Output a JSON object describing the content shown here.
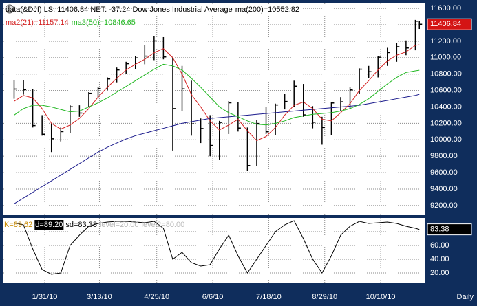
{
  "chart_data": [
    {
      "type": "ohlc",
      "title": "data(&DJI) LS: 11406.84  NET: -37.24  Dow Jones Industrial Average",
      "x": [
        "2010-01-08",
        "2010-01-15",
        "2010-01-22",
        "2010-01-29",
        "2010-02-05",
        "2010-02-12",
        "2010-02-19",
        "2010-02-26",
        "2010-03-05",
        "2010-03-12",
        "2010-03-19",
        "2010-03-26",
        "2010-04-02",
        "2010-04-09",
        "2010-04-16",
        "2010-04-23",
        "2010-04-30",
        "2010-05-07",
        "2010-05-14",
        "2010-05-21",
        "2010-05-28",
        "2010-06-04",
        "2010-06-11",
        "2010-06-18",
        "2010-06-25",
        "2010-07-02",
        "2010-07-09",
        "2010-07-16",
        "2010-07-23",
        "2010-07-30",
        "2010-08-06",
        "2010-08-13",
        "2010-08-20",
        "2010-08-27",
        "2010-09-03",
        "2010-09-10",
        "2010-09-17",
        "2010-09-24",
        "2010-10-01",
        "2010-10-08",
        "2010-10-15",
        "2010-10-22",
        "2010-10-29",
        "2010-11-05",
        "2010-11-08"
      ],
      "high": [
        10730,
        10730,
        10620,
        10300,
        10200,
        10150,
        10420,
        10420,
        10580,
        10640,
        10760,
        10880,
        10950,
        11020,
        11150,
        11260,
        11250,
        11010,
        10900,
        10720,
        10260,
        10300,
        10230,
        10470,
        10460,
        10150,
        10240,
        10400,
        10440,
        10560,
        10720,
        10680,
        10410,
        10280,
        10460,
        10520,
        10640,
        10870,
        10900,
        11020,
        11120,
        11180,
        11210,
        11460,
        11450
      ],
      "low": [
        10500,
        10550,
        10150,
        10050,
        9850,
        9980,
        10080,
        10280,
        10400,
        10510,
        10600,
        10700,
        10800,
        10860,
        10920,
        10970,
        10980,
        9870,
        10350,
        10050,
        9960,
        9800,
        9760,
        10070,
        10100,
        9620,
        9680,
        10070,
        10060,
        10370,
        10400,
        10280,
        10140,
        9940,
        10060,
        10350,
        10380,
        10560,
        10750,
        10760,
        10900,
        10950,
        11030,
        11090,
        11350
      ],
      "close": [
        10618,
        10610,
        10173,
        10067,
        10012,
        10099,
        10402,
        10325,
        10566,
        10625,
        10742,
        10851,
        10927,
        10997,
        11019,
        11204,
        11009,
        10380,
        10620,
        10193,
        10137,
        9931,
        10211,
        10450,
        10143,
        9686,
        10198,
        10097,
        10424,
        10466,
        10653,
        10303,
        10213,
        10150,
        10448,
        10462,
        10607,
        10860,
        10829,
        11006,
        11062,
        11133,
        11118,
        11444,
        11406.84
      ],
      "color": "#000000",
      "last_color": "#d41414",
      "series": [
        {
          "name": "ma(200)=10552.82",
          "color": "#1a1a8c",
          "values": [
            9220,
            9290,
            9360,
            9430,
            9500,
            9570,
            9640,
            9710,
            9780,
            9850,
            9910,
            9960,
            10010,
            10050,
            10080,
            10110,
            10140,
            10170,
            10200,
            10220,
            10240,
            10260,
            10270,
            10280,
            10290,
            10300,
            10310,
            10320,
            10330,
            10340,
            10350,
            10360,
            10370,
            10380,
            10390,
            10400,
            10410,
            10420,
            10440,
            10460,
            10480,
            10500,
            10520,
            10540,
            10552.82
          ]
        },
        {
          "name": "ma2(21)=11157.14",
          "color": "#d42020",
          "values": [
            10470,
            10540,
            10510,
            10380,
            10200,
            10130,
            10180,
            10260,
            10380,
            10520,
            10640,
            10750,
            10850,
            10920,
            10980,
            11060,
            11110,
            11000,
            10800,
            10550,
            10400,
            10230,
            10120,
            10180,
            10250,
            10110,
            9990,
            10040,
            10150,
            10300,
            10420,
            10460,
            10380,
            10250,
            10230,
            10330,
            10440,
            10600,
            10720,
            10850,
            10960,
            11030,
            11070,
            11150,
            11157.14
          ]
        },
        {
          "name": "ma3(50)=10846.65",
          "color": "#22b822",
          "values": [
            10300,
            10380,
            10420,
            10420,
            10400,
            10370,
            10340,
            10350,
            10400,
            10450,
            10510,
            10580,
            10650,
            10720,
            10790,
            10860,
            10920,
            10900,
            10850,
            10750,
            10640,
            10520,
            10400,
            10330,
            10280,
            10230,
            10190,
            10180,
            10200,
            10230,
            10270,
            10290,
            10310,
            10320,
            10330,
            10350,
            10380,
            10430,
            10500,
            10590,
            10680,
            10760,
            10820,
            10840,
            10846.65
          ]
        }
      ],
      "xlim": [
        "2009-12-31",
        "2010-11-12"
      ],
      "ylim": [
        9090,
        11660
      ],
      "yticks": [
        {
          "value": 9200,
          "label": "9200.00"
        },
        {
          "value": 9400,
          "label": "9400.00"
        },
        {
          "value": 9600,
          "label": "9600.00"
        },
        {
          "value": 9800,
          "label": "9800.00"
        },
        {
          "value": 10000,
          "label": "10000.00"
        },
        {
          "value": 10200,
          "label": "10200.00"
        },
        {
          "value": 10400,
          "label": "10400.00"
        },
        {
          "value": 10600,
          "label": "10600.00"
        },
        {
          "value": 10800,
          "label": "10800.00"
        },
        {
          "value": 11000,
          "label": "11000.00"
        },
        {
          "value": 11200,
          "label": "11200.00"
        },
        {
          "value": 11400,
          "label": "11400.00"
        },
        {
          "value": 11600,
          "label": "11600.00"
        }
      ],
      "grid": true
    },
    {
      "type": "line",
      "legend": [
        {
          "text": "K=89.62",
          "color": "#c88a00"
        },
        {
          "text": "d=89.20",
          "color": "#ffffff",
          "box": "#000000"
        },
        {
          "text": "sd=83.38",
          "color": "#000000"
        },
        {
          "text": "level=20.00",
          "color": "#b8b8b8"
        },
        {
          "text": "level2=80.00",
          "color": "#b8b8b8"
        }
      ],
      "x": [
        "2010-01-08",
        "2010-01-15",
        "2010-01-22",
        "2010-01-29",
        "2010-02-05",
        "2010-02-12",
        "2010-02-19",
        "2010-02-26",
        "2010-03-05",
        "2010-03-12",
        "2010-03-19",
        "2010-03-26",
        "2010-04-02",
        "2010-04-09",
        "2010-04-16",
        "2010-04-23",
        "2010-04-30",
        "2010-05-07",
        "2010-05-14",
        "2010-05-21",
        "2010-05-28",
        "2010-06-04",
        "2010-06-11",
        "2010-06-18",
        "2010-06-25",
        "2010-07-02",
        "2010-07-09",
        "2010-07-16",
        "2010-07-23",
        "2010-07-30",
        "2010-08-06",
        "2010-08-13",
        "2010-08-20",
        "2010-08-27",
        "2010-09-03",
        "2010-09-10",
        "2010-09-17",
        "2010-09-24",
        "2010-10-01",
        "2010-10-08",
        "2010-10-15",
        "2010-10-22",
        "2010-10-29",
        "2010-11-05",
        "2010-11-08"
      ],
      "series": [
        {
          "name": "sd",
          "color": "#000000",
          "values": [
            93,
            90,
            55,
            25,
            18,
            20,
            60,
            75,
            88,
            92,
            94,
            95,
            95,
            94,
            93,
            95,
            85,
            40,
            50,
            35,
            30,
            32,
            55,
            75,
            45,
            20,
            40,
            60,
            80,
            90,
            96,
            70,
            40,
            20,
            45,
            75,
            88,
            95,
            92,
            93,
            94,
            92,
            88,
            85,
            83.38
          ]
        }
      ],
      "xlim": [
        "2009-12-31",
        "2010-11-12"
      ],
      "ylim": [
        5,
        100
      ],
      "yticks": [
        {
          "value": 20,
          "label": "20.00"
        },
        {
          "value": 40,
          "label": "40.00"
        },
        {
          "value": 60,
          "label": "60.00"
        },
        {
          "value": 80,
          "label": "80.00"
        }
      ],
      "xticks": [
        {
          "value": "2010-01-31",
          "label": "1/31/10"
        },
        {
          "value": "2010-03-13",
          "label": "3/13/10"
        },
        {
          "value": "2010-04-25",
          "label": "4/25/10"
        },
        {
          "value": "2010-06-06",
          "label": "6/6/10"
        },
        {
          "value": "2010-07-18",
          "label": "7/18/10"
        },
        {
          "value": "2010-08-29",
          "label": "8/29/10"
        },
        {
          "value": "2010-10-10",
          "label": "10/10/10"
        }
      ],
      "x_label": "Daily",
      "grid": true
    }
  ]
}
